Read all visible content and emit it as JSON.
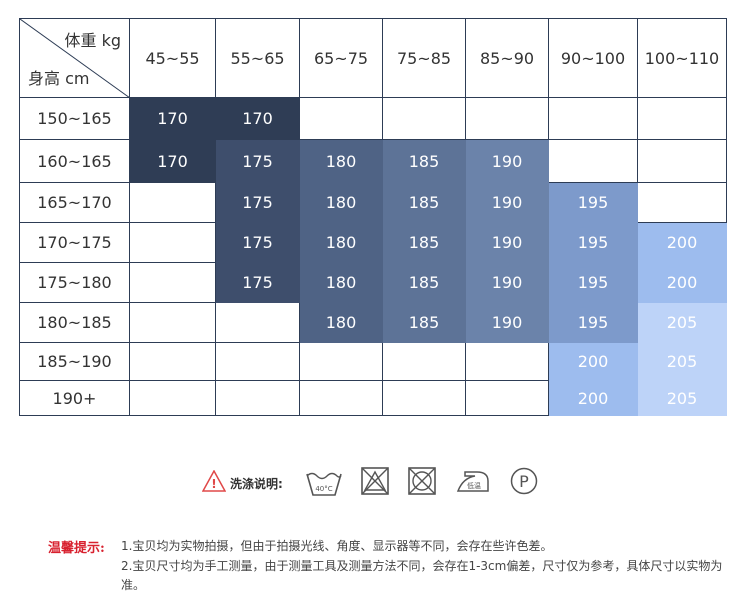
{
  "table": {
    "corner": {
      "weight_label": "体重 kg",
      "height_label": "身高 cm"
    },
    "weight_columns": [
      "45~55",
      "55~65",
      "65~75",
      "75~85",
      "85~90",
      "90~100",
      "100~110"
    ],
    "rows": [
      {
        "height": "150~165",
        "cells": [
          "170",
          "170",
          "",
          "",
          "",
          "",
          ""
        ]
      },
      {
        "height": "160~165",
        "cells": [
          "170",
          "175",
          "180",
          "185",
          "190",
          "",
          ""
        ]
      },
      {
        "height": "165~170",
        "cells": [
          "",
          "175",
          "180",
          "185",
          "190",
          "195",
          ""
        ]
      },
      {
        "height": "170~175",
        "cells": [
          "",
          "175",
          "180",
          "185",
          "190",
          "195",
          "200"
        ]
      },
      {
        "height": "175~180",
        "cells": [
          "",
          "175",
          "180",
          "185",
          "190",
          "195",
          "200"
        ]
      },
      {
        "height": "180~185",
        "cells": [
          "",
          "",
          "180",
          "185",
          "190",
          "195",
          "205"
        ]
      },
      {
        "height": "185~190",
        "cells": [
          "",
          "",
          "",
          "",
          "",
          "200",
          "205"
        ]
      },
      {
        "height": "190+",
        "cells": [
          "",
          "",
          "",
          "",
          "",
          "200",
          "205"
        ]
      }
    ],
    "size_colors": {
      "170": "#2f3d55",
      "175": "#3e4e6c",
      "180": "#4f6385",
      "185": "#5d7397",
      "190": "#6b83aa",
      "195": "#7d9acb",
      "200": "#9dbcee",
      "205": "#bdd3f8"
    }
  },
  "care": {
    "title": "洗涤说明:",
    "icons": [
      {
        "name": "wash-40c-icon",
        "text": "40°C"
      },
      {
        "name": "no-bleach-icon",
        "text": ""
      },
      {
        "name": "no-tumble-dry-icon",
        "text": ""
      },
      {
        "name": "iron-low-icon",
        "text": "低温"
      },
      {
        "name": "dry-clean-p-icon",
        "text": "P"
      }
    ]
  },
  "notes": {
    "label": "温馨提示:",
    "items": [
      "1.宝贝均为实物拍摄，但由于拍摄光线、角度、显示器等不同，会存在些许色差。",
      "2.宝贝尺寸均为手工测量，由于测量工具及测量方法不同，会存在1-3cm偏差，尺寸仅为参考，具体尺寸以实物为准。"
    ]
  }
}
